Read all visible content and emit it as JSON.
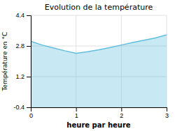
{
  "chart_data": {
    "type": "area",
    "title": "Evolution de la température",
    "x_label": "heure par heure",
    "y_label": "Température en °C",
    "x": [
      0,
      0.25,
      0.5,
      0.75,
      1.0,
      1.25,
      1.5,
      1.75,
      2.0,
      2.25,
      2.5,
      2.75,
      3.0
    ],
    "values": [
      3.05,
      2.85,
      2.7,
      2.55,
      2.42,
      2.5,
      2.6,
      2.72,
      2.85,
      2.98,
      3.1,
      3.22,
      3.38
    ],
    "baseline": -0.4,
    "color": "#60bedd",
    "xlim": [
      0,
      3
    ],
    "ylim": [
      -0.4,
      4.4
    ],
    "xticks": [
      0,
      1,
      2,
      3
    ],
    "yticks": [
      -0.4,
      1.2,
      2.8,
      4.4
    ],
    "grid": true
  }
}
